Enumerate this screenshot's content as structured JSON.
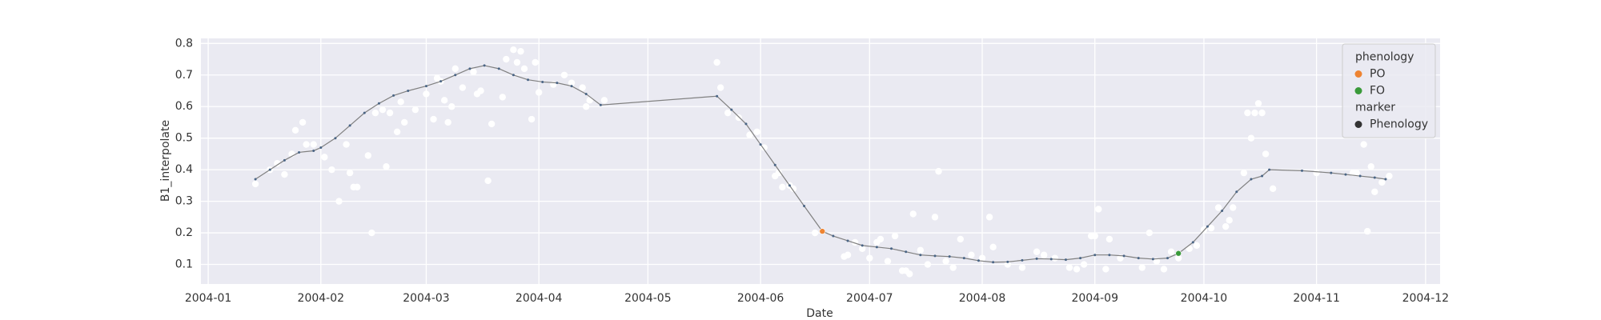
{
  "chart_data": {
    "type": "line",
    "xlabel": "Date",
    "ylabel": "B1_interpolate",
    "xlim": [
      "2003-12-30",
      "2004-12-05"
    ],
    "xticks": [
      {
        "value": "2004-01-01",
        "label": "2004-01"
      },
      {
        "value": "2004-02-01",
        "label": "2004-02"
      },
      {
        "value": "2004-03-01",
        "label": "2004-03"
      },
      {
        "value": "2004-04-01",
        "label": "2004-04"
      },
      {
        "value": "2004-05-01",
        "label": "2004-05"
      },
      {
        "value": "2004-06-01",
        "label": "2004-06"
      },
      {
        "value": "2004-07-01",
        "label": "2004-07"
      },
      {
        "value": "2004-08-01",
        "label": "2004-08"
      },
      {
        "value": "2004-09-01",
        "label": "2004-09"
      },
      {
        "value": "2004-10-01",
        "label": "2004-10"
      },
      {
        "value": "2004-11-01",
        "label": "2004-11"
      },
      {
        "value": "2004-12-01",
        "label": "2004-12"
      }
    ],
    "ylim": [
      0.038,
      0.816
    ],
    "yticks": [
      0.1,
      0.2,
      0.3,
      0.4,
      0.5,
      0.6,
      0.7,
      0.8
    ],
    "grid": true,
    "raw": {
      "color": "#ffffff",
      "x": [
        "2004-01-14",
        "2004-01-18",
        "2004-01-20",
        "2004-01-22",
        "2004-01-24",
        "2004-01-25",
        "2004-01-27",
        "2004-01-28",
        "2004-01-30",
        "2004-02-02",
        "2004-02-04",
        "2004-02-06",
        "2004-02-08",
        "2004-02-09",
        "2004-02-10",
        "2004-02-11",
        "2004-02-14",
        "2004-02-15",
        "2004-02-16",
        "2004-02-18",
        "2004-02-19",
        "2004-02-20",
        "2004-02-22",
        "2004-02-23",
        "2004-02-24",
        "2004-02-27",
        "2004-03-01",
        "2004-03-03",
        "2004-03-04",
        "2004-03-05",
        "2004-03-06",
        "2004-03-07",
        "2004-03-08",
        "2004-03-09",
        "2004-03-11",
        "2004-03-14",
        "2004-03-15",
        "2004-03-16",
        "2004-03-18",
        "2004-03-19",
        "2004-03-22",
        "2004-03-23",
        "2004-03-25",
        "2004-03-26",
        "2004-03-27",
        "2004-03-28",
        "2004-03-30",
        "2004-03-31",
        "2004-04-01",
        "2004-04-05",
        "2004-04-08",
        "2004-04-10",
        "2004-04-13",
        "2004-04-14",
        "2004-04-15",
        "2004-04-19",
        "2004-05-20",
        "2004-05-21",
        "2004-05-23",
        "2004-05-26",
        "2004-05-29",
        "2004-05-31",
        "2004-06-02",
        "2004-06-05",
        "2004-06-06",
        "2004-06-07",
        "2004-06-09",
        "2004-06-10",
        "2004-06-16",
        "2004-06-24",
        "2004-06-25",
        "2004-06-27",
        "2004-06-29",
        "2004-07-01",
        "2004-07-03",
        "2004-07-04",
        "2004-07-06",
        "2004-07-08",
        "2004-07-10",
        "2004-07-11",
        "2004-07-12",
        "2004-07-13",
        "2004-07-15",
        "2004-07-17",
        "2004-07-19",
        "2004-07-20",
        "2004-07-22",
        "2004-07-24",
        "2004-07-26",
        "2004-07-29",
        "2004-08-01",
        "2004-08-03",
        "2004-08-04",
        "2004-08-08",
        "2004-08-12",
        "2004-08-16",
        "2004-08-18",
        "2004-08-21",
        "2004-08-25",
        "2004-08-27",
        "2004-08-29",
        "2004-08-31",
        "2004-09-01",
        "2004-09-02",
        "2004-09-04",
        "2004-09-05",
        "2004-09-08",
        "2004-09-14",
        "2004-09-16",
        "2004-09-18",
        "2004-09-20",
        "2004-09-22",
        "2004-09-24",
        "2004-09-27",
        "2004-09-29",
        "2004-10-01",
        "2004-10-03",
        "2004-10-05",
        "2004-10-07",
        "2004-10-08",
        "2004-10-09",
        "2004-10-12",
        "2004-10-13",
        "2004-10-14",
        "2004-10-15",
        "2004-10-16",
        "2004-10-17",
        "2004-10-18",
        "2004-10-20",
        "2004-11-01",
        "2004-11-11",
        "2004-11-12",
        "2004-11-14",
        "2004-11-15",
        "2004-11-16",
        "2004-11-17",
        "2004-11-19",
        "2004-11-21"
      ],
      "values": [
        0.355,
        0.4,
        0.42,
        0.385,
        0.45,
        0.525,
        0.55,
        0.48,
        0.48,
        0.44,
        0.4,
        0.3,
        0.48,
        0.39,
        0.345,
        0.345,
        0.445,
        0.2,
        0.58,
        0.59,
        0.41,
        0.58,
        0.52,
        0.615,
        0.55,
        0.59,
        0.64,
        0.56,
        0.69,
        0.68,
        0.62,
        0.55,
        0.6,
        0.72,
        0.66,
        0.71,
        0.64,
        0.65,
        0.365,
        0.545,
        0.63,
        0.75,
        0.78,
        0.74,
        0.775,
        0.72,
        0.56,
        0.74,
        0.645,
        0.67,
        0.7,
        0.675,
        0.66,
        0.6,
        0.62,
        0.62,
        0.74,
        0.66,
        0.58,
        0.565,
        0.51,
        0.52,
        0.47,
        0.38,
        0.39,
        0.345,
        0.35,
        0.34,
        0.2,
        0.125,
        0.13,
        0.17,
        0.15,
        0.12,
        0.17,
        0.18,
        0.11,
        0.19,
        0.08,
        0.08,
        0.07,
        0.26,
        0.145,
        0.1,
        0.25,
        0.395,
        0.11,
        0.09,
        0.18,
        0.13,
        0.12,
        0.25,
        0.155,
        0.1,
        0.09,
        0.14,
        0.13,
        0.12,
        0.09,
        0.085,
        0.1,
        0.19,
        0.19,
        0.275,
        0.085,
        0.18,
        0.12,
        0.09,
        0.2,
        0.11,
        0.085,
        0.14,
        0.12,
        0.15,
        0.16,
        0.21,
        0.215,
        0.28,
        0.22,
        0.24,
        0.28,
        0.39,
        0.58,
        0.5,
        0.58,
        0.61,
        0.58,
        0.45,
        0.34,
        0.39,
        0.39,
        0.39,
        0.48,
        0.205,
        0.41,
        0.33,
        0.36,
        0.38
      ]
    },
    "line": {
      "color": "#808080",
      "marker_color": "#4a6585",
      "x": [
        "2004-01-14",
        "2004-01-18",
        "2004-01-22",
        "2004-01-26",
        "2004-01-30",
        "2004-02-01",
        "2004-02-05",
        "2004-02-09",
        "2004-02-13",
        "2004-02-17",
        "2004-02-21",
        "2004-02-25",
        "2004-03-01",
        "2004-03-05",
        "2004-03-09",
        "2004-03-13",
        "2004-03-17",
        "2004-03-21",
        "2004-03-25",
        "2004-03-29",
        "2004-04-02",
        "2004-04-06",
        "2004-04-10",
        "2004-04-14",
        "2004-04-18",
        "2004-05-20",
        "2004-05-24",
        "2004-05-28",
        "2004-06-01",
        "2004-06-05",
        "2004-06-09",
        "2004-06-13",
        "2004-06-18",
        "2004-06-21",
        "2004-06-25",
        "2004-06-29",
        "2004-07-03",
        "2004-07-07",
        "2004-07-11",
        "2004-07-15",
        "2004-07-19",
        "2004-07-23",
        "2004-07-27",
        "2004-07-31",
        "2004-08-04",
        "2004-08-08",
        "2004-08-12",
        "2004-08-16",
        "2004-08-20",
        "2004-08-24",
        "2004-08-28",
        "2004-09-01",
        "2004-09-05",
        "2004-09-09",
        "2004-09-13",
        "2004-09-17",
        "2004-09-21",
        "2004-09-24",
        "2004-09-28",
        "2004-10-02",
        "2004-10-06",
        "2004-10-10",
        "2004-10-14",
        "2004-10-17",
        "2004-10-19",
        "2004-10-28",
        "2004-11-05",
        "2004-11-09",
        "2004-11-13",
        "2004-11-17",
        "2004-11-20"
      ],
      "values": [
        0.37,
        0.4,
        0.43,
        0.455,
        0.46,
        0.47,
        0.5,
        0.54,
        0.58,
        0.61,
        0.635,
        0.65,
        0.665,
        0.68,
        0.7,
        0.72,
        0.73,
        0.72,
        0.7,
        0.685,
        0.678,
        0.675,
        0.665,
        0.64,
        0.605,
        0.633,
        0.59,
        0.545,
        0.48,
        0.415,
        0.35,
        0.285,
        0.205,
        0.19,
        0.175,
        0.16,
        0.155,
        0.15,
        0.14,
        0.13,
        0.127,
        0.125,
        0.12,
        0.112,
        0.107,
        0.108,
        0.113,
        0.118,
        0.117,
        0.115,
        0.12,
        0.13,
        0.13,
        0.127,
        0.12,
        0.117,
        0.12,
        0.135,
        0.17,
        0.22,
        0.27,
        0.33,
        0.37,
        0.38,
        0.4,
        0.397,
        0.39,
        0.385,
        0.38,
        0.375,
        0.37
      ]
    },
    "legend": {
      "title": "phenology",
      "position": "upper right"
    },
    "series": [
      {
        "name": "PO",
        "color": "#ee8432",
        "x": [
          "2004-06-18"
        ],
        "values": [
          0.205
        ]
      },
      {
        "name": "FO",
        "color": "#3a9a3a",
        "x": [
          "2004-09-24"
        ],
        "values": [
          0.135
        ]
      }
    ],
    "marker_legend": {
      "title": "marker",
      "entries": [
        {
          "name": "Phenology",
          "color": "#333333"
        }
      ]
    }
  }
}
